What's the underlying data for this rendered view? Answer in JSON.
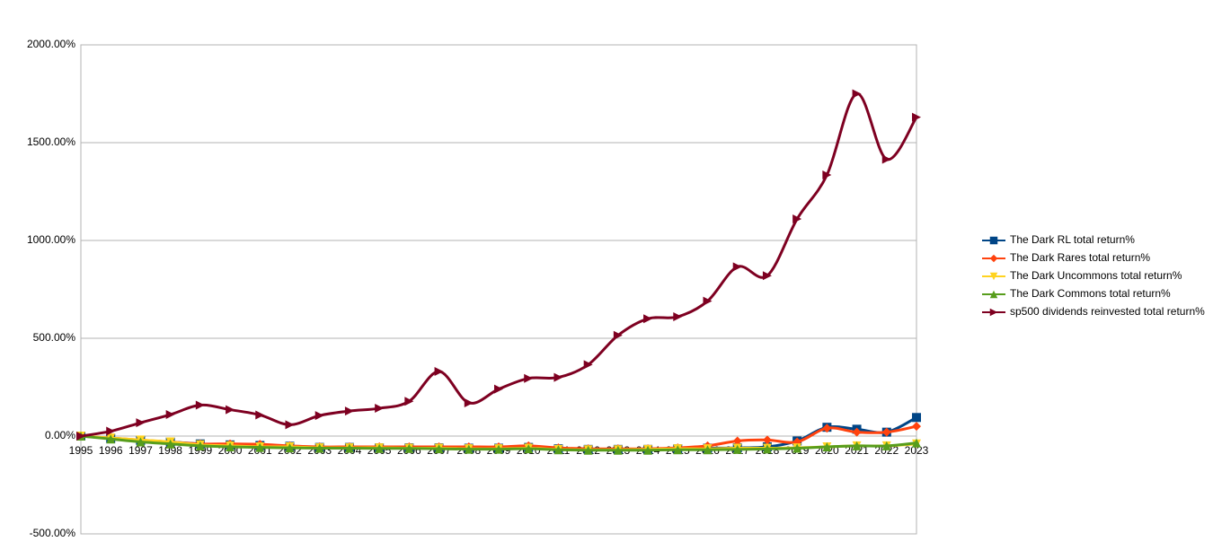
{
  "chart_data": {
    "type": "line",
    "categories": [
      "1995",
      "1996",
      "1997",
      "1998",
      "1999",
      "2000",
      "2001",
      "2002",
      "2003",
      "2004",
      "2005",
      "2006",
      "2007",
      "2008",
      "2009",
      "2010",
      "2011",
      "2012",
      "2013",
      "2014",
      "2015",
      "2016",
      "2017",
      "2018",
      "2019",
      "2020",
      "2021",
      "2022",
      "2023"
    ],
    "ylim": [
      -500,
      2000
    ],
    "yticks": [
      {
        "value": -500,
        "label": "-500.00%"
      },
      {
        "value": 0,
        "label": "0.00%"
      },
      {
        "value": 500,
        "label": "500.00%"
      },
      {
        "value": 1000,
        "label": "1000.00%"
      },
      {
        "value": 1500,
        "label": "1500.00%"
      },
      {
        "value": 2000,
        "label": "2000.00%"
      }
    ],
    "grid": true,
    "legend": "right",
    "smooth": true,
    "series": [
      {
        "name": "The Dark RL total return%",
        "color": "#004586",
        "marker": "square",
        "values": [
          0,
          -12,
          -22,
          -30,
          -40,
          -45,
          -48,
          -52,
          -58,
          -58,
          -60,
          -60,
          -60,
          -62,
          -62,
          -58,
          -65,
          -68,
          -68,
          -68,
          -65,
          -62,
          -60,
          -55,
          -25,
          45,
          35,
          20,
          95
        ]
      },
      {
        "name": "The Dark Rares total return%",
        "color": "#ff420e",
        "marker": "diamond",
        "values": [
          0,
          -10,
          -20,
          -30,
          -40,
          -40,
          -42,
          -50,
          -55,
          -55,
          -55,
          -55,
          -55,
          -55,
          -55,
          -50,
          -60,
          -65,
          -65,
          -65,
          -60,
          -50,
          -25,
          -20,
          -30,
          40,
          20,
          20,
          50
        ]
      },
      {
        "name": "The Dark Uncommons total return%",
        "color": "#ffd320",
        "marker": "triangle-down",
        "values": [
          0,
          -10,
          -20,
          -30,
          -45,
          -50,
          -55,
          -55,
          -60,
          -60,
          -60,
          -62,
          -62,
          -65,
          -65,
          -62,
          -68,
          -70,
          -70,
          -68,
          -65,
          -65,
          -62,
          -62,
          -60,
          -55,
          -50,
          -50,
          -40
        ]
      },
      {
        "name": "The Dark Commons total return%",
        "color": "#579d1c",
        "marker": "triangle-up",
        "values": [
          0,
          -15,
          -30,
          -40,
          -50,
          -55,
          -58,
          -60,
          -62,
          -62,
          -63,
          -63,
          -65,
          -67,
          -67,
          -65,
          -70,
          -72,
          -72,
          -72,
          -70,
          -70,
          -68,
          -66,
          -62,
          -55,
          -50,
          -50,
          -35
        ]
      },
      {
        "name": "sp500 dividends reinvested total return%",
        "color": "#7e0021",
        "marker": "triangle-right",
        "values": [
          0,
          25,
          68,
          110,
          158,
          135,
          108,
          58,
          105,
          128,
          142,
          178,
          330,
          170,
          240,
          295,
          300,
          365,
          515,
          600,
          610,
          690,
          865,
          820,
          1110,
          1335,
          1750,
          1415,
          1630
        ]
      }
    ]
  }
}
